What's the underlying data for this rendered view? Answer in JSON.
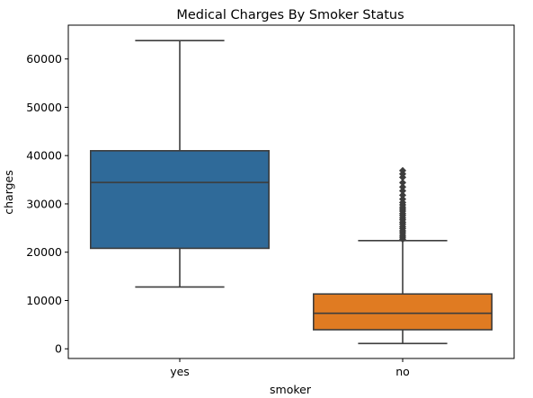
{
  "chart_data": {
    "type": "box",
    "title": "Medical Charges By Smoker Status",
    "xlabel": "smoker",
    "ylabel": "charges",
    "ylim": [
      -2000,
      67000
    ],
    "yticks": [
      0,
      10000,
      20000,
      30000,
      40000,
      50000,
      60000
    ],
    "ytick_labels": [
      "0",
      "10000",
      "20000",
      "30000",
      "40000",
      "50000",
      "60000"
    ],
    "grid": false,
    "categories": [
      "yes",
      "no"
    ],
    "boxes": [
      {
        "name": "yes",
        "color": "#2f6a99",
        "whisker_low": 12800,
        "q1": 20800,
        "median": 34450,
        "q3": 41000,
        "whisker_high": 63800,
        "outliers": []
      },
      {
        "name": "no",
        "color": "#e07b22",
        "whisker_low": 1100,
        "q1": 3950,
        "median": 7350,
        "q3": 11350,
        "whisker_high": 22400,
        "outliers": [
          22700,
          23100,
          23500,
          24000,
          24400,
          24900,
          25300,
          25800,
          26200,
          26700,
          27100,
          27600,
          28000,
          28500,
          28900,
          29300,
          29800,
          30300,
          31000,
          31800,
          32700,
          33500,
          34400,
          35500,
          36200,
          36900
        ]
      }
    ]
  }
}
